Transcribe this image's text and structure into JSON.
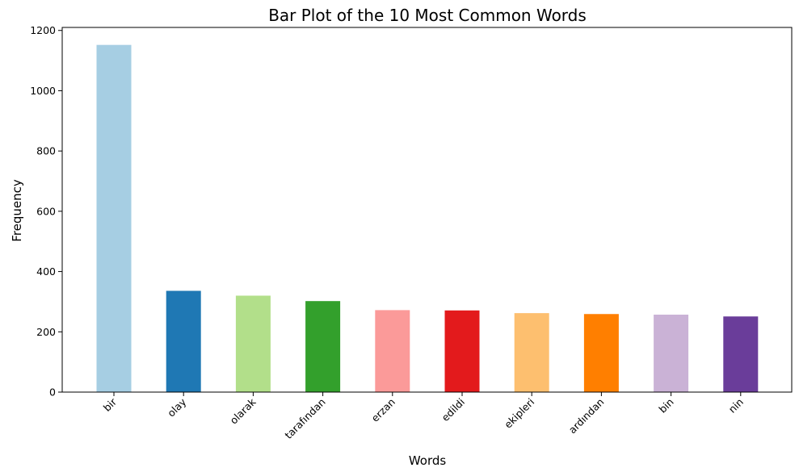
{
  "chart_data": {
    "type": "bar",
    "title": "Bar Plot of the 10 Most Common Words",
    "xlabel": "Words",
    "ylabel": "Frequency",
    "categories": [
      "bir",
      "olay",
      "olarak",
      "tarafından",
      "erzan",
      "edildi",
      "ekipleri",
      "ardından",
      "bin",
      "nin"
    ],
    "values": [
      1152,
      336,
      320,
      302,
      272,
      271,
      262,
      259,
      257,
      251
    ],
    "colors": [
      "#a6cee3",
      "#1f78b4",
      "#b2df8a",
      "#33a02c",
      "#fb9a99",
      "#e31a1c",
      "#fdbf6f",
      "#ff7f00",
      "#cab2d6",
      "#6a3d9a"
    ],
    "yticks": [
      0,
      200,
      400,
      600,
      800,
      1000,
      1200
    ],
    "ylim": [
      0,
      1210
    ],
    "grid": false,
    "legend": "none"
  }
}
